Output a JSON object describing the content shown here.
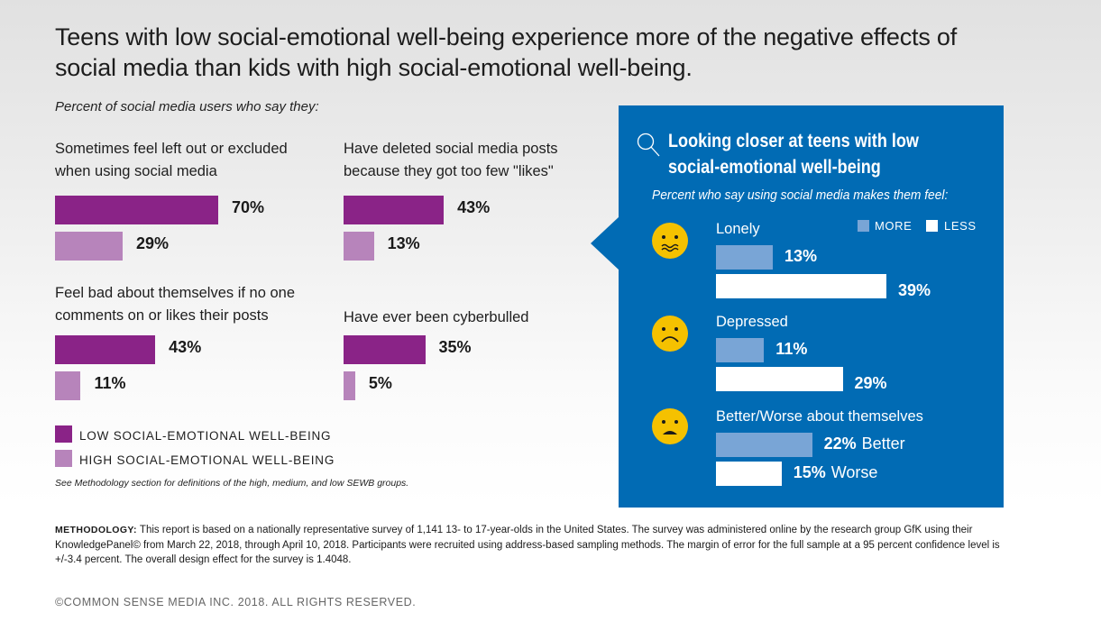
{
  "title": "Teens with low social-emotional well-being experience more of the negative effects of social media than kids with high social-emotional well-being.",
  "subtitle": "Percent of social media users who say they:",
  "colors": {
    "low": "#8a2387",
    "high": "#b784bb",
    "panel": "#016bb4",
    "more": "#79a5d6",
    "less": "#ffffff",
    "face": "#f5c100"
  },
  "chart_data": [
    {
      "type": "bar",
      "orientation": "horizontal",
      "title": "Percent of social media users who say they:",
      "unit": "%",
      "series_names": [
        "Low social-emotional well-being",
        "High social-emotional well-being"
      ],
      "groups": [
        {
          "label": "Sometimes feel left out or excluded when using social media",
          "low": 70,
          "high": 29,
          "low_label": "70%",
          "high_label": "29%"
        },
        {
          "label": "Have deleted social media posts because they got too few \"likes\"",
          "low": 43,
          "high": 13,
          "low_label": "43%",
          "high_label": "13%"
        },
        {
          "label": "Feel bad about themselves if no one comments on or likes their posts",
          "low": 43,
          "high": 11,
          "low_label": "43%",
          "high_label": "11%"
        },
        {
          "label": "Have ever been cyberbulled",
          "low": 35,
          "high": 5,
          "low_label": "35%",
          "high_label": "5%"
        }
      ],
      "legend": [
        "LOW SOCIAL-EMOTIONAL WELL-BEING",
        "HIGH SOCIAL-EMOTIONAL WELL-BEING"
      ],
      "legend_position": "bottom-left",
      "note": "See Methodology section for definitions of the high, medium, and low SEWB groups."
    },
    {
      "type": "bar",
      "orientation": "horizontal",
      "title": "Looking closer at teens with low social-emotional well-being",
      "subtitle": "Percent who say using social media makes them feel:",
      "unit": "%",
      "legend": [
        "MORE",
        "LESS"
      ],
      "legend_position": "top-right",
      "groups": [
        {
          "label": "Lonely",
          "icon": "worried-face-icon",
          "bars": [
            {
              "series": "MORE",
              "value": 13,
              "label": "13%",
              "suffix": ""
            },
            {
              "series": "LESS",
              "value": 39,
              "label": "39%",
              "suffix": ""
            }
          ]
        },
        {
          "label": "Depressed",
          "icon": "sad-face-icon",
          "bars": [
            {
              "series": "MORE",
              "value": 11,
              "label": "11%",
              "suffix": ""
            },
            {
              "series": "LESS",
              "value": 29,
              "label": "29%",
              "suffix": ""
            }
          ]
        },
        {
          "label": "Better/Worse about themselves",
          "icon": "frowning-face-icon",
          "bars": [
            {
              "series": "MORE",
              "value": 22,
              "label": "22%",
              "suffix": "Better"
            },
            {
              "series": "LESS",
              "value": 15,
              "label": "15%",
              "suffix": "Worse"
            }
          ]
        }
      ]
    }
  ],
  "methodology": {
    "label": "METHODOLOGY:",
    "text": " This report is based on a nationally representative survey of 1,141 13- to 17-year-olds in the United States. The survey was administered online by the research group GfK using their KnowledgePanel© from March 22, 2018, through April 10, 2018. Participants were recruited using address-based sampling methods. The margin of error for the full sample at a 95 percent confidence level is +/-3.4 percent. The overall design effect for the survey is 1.4048."
  },
  "copyright": "©COMMON SENSE MEDIA INC. 2018. ALL RIGHTS RESERVED."
}
